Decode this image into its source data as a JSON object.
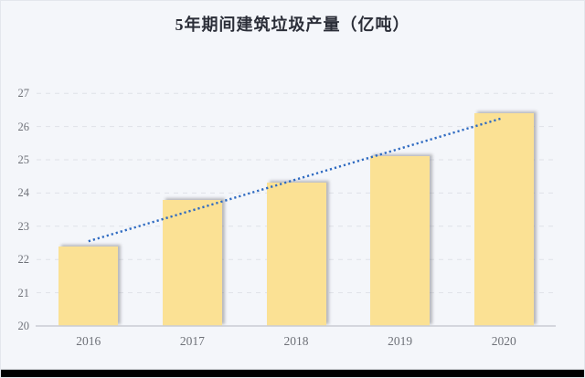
{
  "title": "5年期间建筑垃圾产量（亿吨）",
  "chart_data": {
    "type": "bar",
    "title": "5年期间建筑垃圾产量（亿吨）",
    "categories": [
      "2016",
      "2017",
      "2018",
      "2019",
      "2020"
    ],
    "values": [
      22.4,
      23.8,
      24.3,
      25.1,
      26.4
    ],
    "series_name": "建筑垃圾产量",
    "xlabel": "",
    "ylabel": "",
    "ylim": [
      20,
      27
    ],
    "yticks": [
      20,
      21,
      22,
      23,
      24,
      25,
      26,
      27
    ],
    "grid": "horizontal-dashed",
    "legend": "none",
    "trendline": {
      "style": "dotted-linear",
      "start_value": 22.55,
      "end_value": 26.25
    }
  },
  "colors": {
    "background": "#f4f6fa",
    "bar_fill": "#fbe194",
    "bar_shadow": "rgba(110,110,118,0.45)",
    "trendline": "#2e6ac1",
    "gridline": "#dfe2e8",
    "axis_line": "#c9ccd3",
    "tick_label": "#6e7178",
    "title_color": "#2b2e38",
    "bottom_band": "#000000"
  }
}
